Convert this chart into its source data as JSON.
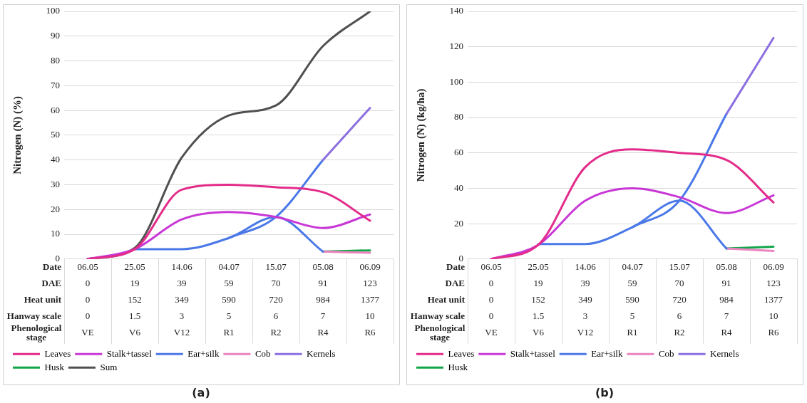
{
  "chart_data": [
    {
      "type": "line",
      "title": "(a)",
      "ylabel": "Nitrogen (N) (%)",
      "categories": [
        "06.05\n0\n0\n0\nVE",
        "25.05\n19\n152\n1.5\nV6",
        "14.06\n39\n349\n3\nV12",
        "04.07\n59\n590\n5\nR1",
        "15.07\n70\n720\n6\nR2",
        "05.08\n91\n984\n7\nR4",
        "06.09\n123\n1377\n10\nR6"
      ],
      "series": [
        {
          "name": "Leaves",
          "color": "#e32b8a",
          "values": [
            0,
            4,
            28,
            30,
            29,
            27,
            15.5
          ]
        },
        {
          "name": "Stalk+tassel",
          "color": "#c837d6",
          "values": [
            0,
            4,
            16,
            19,
            17,
            12.5,
            18
          ]
        },
        {
          "name": "Ear+silk",
          "color": "#4a78e8",
          "values": [
            null,
            4,
            4,
            8.5,
            17,
            3,
            null
          ]
        },
        {
          "name": "Cob",
          "color": "#ec84c0",
          "values": [
            null,
            null,
            null,
            null,
            null,
            3,
            2.5
          ]
        },
        {
          "name": "Kernels",
          "color": "#8c6fe0",
          "values": [
            null,
            null,
            null,
            null,
            null,
            40,
            61
          ]
        },
        {
          "name": "Husk",
          "color": "#12a64a",
          "values": [
            null,
            null,
            null,
            null,
            null,
            3,
            3.5
          ]
        },
        {
          "name": "Sum",
          "color": "#505050",
          "values": [
            0,
            4.5,
            41,
            58,
            62,
            86,
            100
          ]
        },
        {
          "color": "#4a78e8",
          "values": [
            null,
            null,
            null,
            8.5,
            17,
            40,
            null
          ]
        }
      ],
      "ylim": [
        0,
        100
      ],
      "yticks": [
        0,
        10,
        20,
        30,
        40,
        50,
        60,
        70,
        80,
        90,
        100
      ],
      "grid": "y",
      "legend": "bottom",
      "marker": "none",
      "line_style": "solid",
      "annotations": [
        "Date",
        "DAE",
        "Heat unit",
        "Hanway scale",
        "Phenological stage"
      ]
    },
    {
      "type": "line",
      "title": "(b)",
      "ylabel": "Nitrogen (N) (kg/ha)",
      "categories": [
        "06.05\n0\n0\n0\nVE",
        "25.05\n19\n152\n1.5\nV6",
        "14.06\n39\n349\n3\nV12",
        "04.07\n59\n590\n5\nR1",
        "15.07\n70\n720\n6\nR2",
        "05.08\n91\n984\n7\nR4",
        "06.09\n123\n1377\n10\nR6"
      ],
      "series": [
        {
          "name": "Leaves",
          "color": "#e32b8a",
          "values": [
            0,
            8,
            52,
            62,
            60,
            56,
            32
          ]
        },
        {
          "name": "Stalk+tassel",
          "color": "#c837d6",
          "values": [
            0,
            8,
            33,
            40,
            35,
            26,
            36
          ]
        },
        {
          "name": "Ear+silk",
          "color": "#4a78e8",
          "values": [
            null,
            8.5,
            8.5,
            18,
            33,
            6,
            null
          ]
        },
        {
          "name": "Cob",
          "color": "#ec84c0",
          "values": [
            null,
            null,
            null,
            null,
            null,
            6,
            4.5
          ]
        },
        {
          "name": "Kernels",
          "color": "#8c6fe0",
          "values": [
            null,
            null,
            null,
            null,
            null,
            82,
            125
          ]
        },
        {
          "name": "Husk",
          "color": "#12a64a",
          "values": [
            null,
            null,
            null,
            null,
            null,
            6,
            7
          ]
        },
        {
          "color": "#4a78e8",
          "values": [
            null,
            null,
            null,
            18,
            33,
            82,
            null
          ]
        }
      ],
      "ylim": [
        0,
        140
      ],
      "yticks": [
        0,
        20,
        40,
        60,
        80,
        100,
        120,
        140
      ],
      "grid": "y",
      "legend": "bottom",
      "marker": "none",
      "line_style": "solid",
      "annotations": [
        "Date",
        "DAE",
        "Heat unit",
        "Hanway scale",
        "Phenological stage"
      ]
    }
  ]
}
